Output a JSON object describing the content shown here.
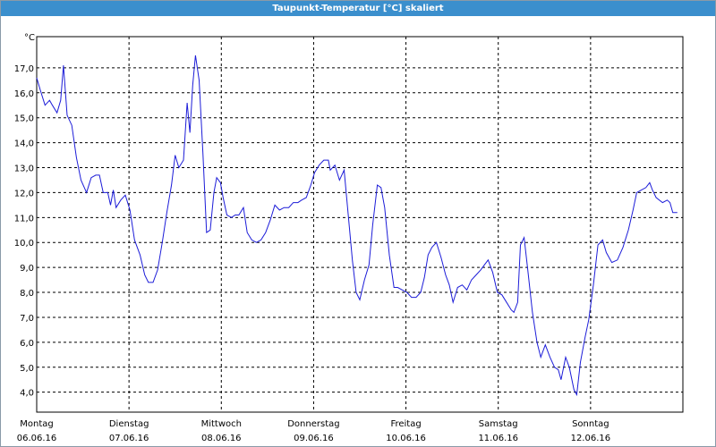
{
  "chart_data": {
    "type": "line",
    "title": "Taupunkt-Temperatur [°C] skaliert",
    "y_unit": "°C",
    "xlim": [
      0,
      7
    ],
    "ylim": [
      3.2,
      18.25
    ],
    "xticks": [
      {
        "value": 0,
        "label": "Montag",
        "date": "06.06.16"
      },
      {
        "value": 1,
        "label": "Dienstag",
        "date": "07.06.16"
      },
      {
        "value": 2,
        "label": "Mittwoch",
        "date": "08.06.16"
      },
      {
        "value": 3,
        "label": "Donnerstag",
        "date": "09.06.16"
      },
      {
        "value": 4,
        "label": "Freitag",
        "date": "10.06.16"
      },
      {
        "value": 5,
        "label": "Samstag",
        "date": "11.06.16"
      },
      {
        "value": 6,
        "label": "Sonntag",
        "date": "12.06.16"
      }
    ],
    "yticks": [
      {
        "value": 4,
        "label": "4,0"
      },
      {
        "value": 5,
        "label": "5,0"
      },
      {
        "value": 6,
        "label": "6,0"
      },
      {
        "value": 7,
        "label": "7,0"
      },
      {
        "value": 8,
        "label": "8,0"
      },
      {
        "value": 9,
        "label": "9,0"
      },
      {
        "value": 10,
        "label": "10,0"
      },
      {
        "value": 11,
        "label": "11,0"
      },
      {
        "value": 12,
        "label": "12,0"
      },
      {
        "value": 13,
        "label": "13,0"
      },
      {
        "value": 14,
        "label": "14,0"
      },
      {
        "value": 15,
        "label": "15,0"
      },
      {
        "value": 16,
        "label": "16,0"
      },
      {
        "value": 17,
        "label": "17,0"
      }
    ],
    "grid": true,
    "series": [
      {
        "color": "#1c1cd8",
        "x": [
          0,
          0.04,
          0.09,
          0.14,
          0.17,
          0.22,
          0.26,
          0.29,
          0.33,
          0.38,
          0.43,
          0.48,
          0.54,
          0.59,
          0.64,
          0.68,
          0.72,
          0.77,
          0.8,
          0.83,
          0.86,
          0.91,
          0.96,
          1.01,
          1.06,
          1.12,
          1.17,
          1.21,
          1.26,
          1.31,
          1.36,
          1.41,
          1.46,
          1.5,
          1.54,
          1.59,
          1.63,
          1.66,
          1.69,
          1.72,
          1.76,
          1.8,
          1.84,
          1.88,
          1.92,
          1.95,
          1.99,
          2.02,
          2.06,
          2.11,
          2.15,
          2.19,
          2.24,
          2.28,
          2.33,
          2.38,
          2.43,
          2.48,
          2.53,
          2.58,
          2.63,
          2.68,
          2.73,
          2.78,
          2.83,
          2.87,
          2.92,
          2.97,
          3.01,
          3.06,
          3.11,
          3.16,
          3.18,
          3.23,
          3.28,
          3.33,
          3.37,
          3.42,
          3.46,
          3.5,
          3.55,
          3.6,
          3.64,
          3.69,
          3.73,
          3.77,
          3.82,
          3.87,
          3.91,
          3.96,
          4.01,
          4.06,
          4.11,
          4.16,
          4.2,
          4.24,
          4.28,
          4.33,
          4.38,
          4.43,
          4.47,
          4.51,
          4.56,
          4.61,
          4.66,
          4.71,
          4.76,
          4.81,
          4.85,
          4.89,
          4.94,
          4.99,
          5.04,
          5.09,
          5.14,
          5.17,
          5.21,
          5.24,
          5.28,
          5.32,
          5.37,
          5.42,
          5.46,
          5.51,
          5.56,
          5.61,
          5.65,
          5.68,
          5.73,
          5.77,
          5.82,
          5.85,
          5.89,
          5.94,
          5.98,
          6.03,
          6.08,
          6.13,
          6.17,
          6.23,
          6.29,
          6.35,
          6.41,
          6.46,
          6.5,
          6.55,
          6.6,
          6.64,
          6.67,
          6.71,
          6.78,
          6.83,
          6.86,
          6.89,
          6.94
        ],
        "values": [
          16.6,
          16.1,
          15.5,
          15.7,
          15.5,
          15.2,
          15.7,
          17.1,
          15.1,
          14.7,
          13.4,
          12.5,
          12.0,
          12.6,
          12.7,
          12.7,
          12.0,
          12.0,
          11.5,
          12.1,
          11.4,
          11.7,
          11.9,
          11.3,
          10.1,
          9.5,
          8.7,
          8.4,
          8.4,
          8.9,
          10.0,
          11.2,
          12.3,
          13.5,
          13.0,
          13.3,
          15.6,
          14.4,
          16.3,
          17.5,
          16.5,
          13.6,
          10.4,
          10.5,
          12.0,
          12.6,
          12.4,
          11.8,
          11.1,
          11.0,
          11.1,
          11.1,
          11.4,
          10.4,
          10.1,
          10.0,
          10.1,
          10.4,
          10.9,
          11.5,
          11.3,
          11.4,
          11.4,
          11.6,
          11.6,
          11.7,
          11.8,
          12.3,
          12.8,
          13.1,
          13.3,
          13.3,
          12.9,
          13.1,
          12.5,
          12.9,
          11.3,
          9.3,
          8.0,
          7.7,
          8.5,
          9.1,
          10.7,
          12.3,
          12.2,
          11.4,
          9.5,
          8.2,
          8.2,
          8.1,
          8.0,
          7.8,
          7.8,
          8.0,
          8.6,
          9.5,
          9.8,
          10.0,
          9.4,
          8.7,
          8.3,
          7.6,
          8.2,
          8.3,
          8.1,
          8.5,
          8.7,
          8.9,
          9.1,
          9.3,
          8.8,
          8.0,
          7.9,
          7.6,
          7.3,
          7.2,
          7.6,
          9.9,
          10.2,
          8.9,
          7.2,
          6.0,
          5.4,
          5.9,
          5.4,
          5.0,
          4.9,
          4.5,
          5.4,
          5.0,
          4.1,
          3.9,
          5.2,
          6.2,
          6.9,
          8.3,
          9.9,
          10.1,
          9.6,
          9.2,
          9.3,
          9.8,
          10.5,
          11.3,
          12.0,
          12.1,
          12.2,
          12.4,
          12.1,
          11.8,
          11.6,
          11.7,
          11.6,
          11.2,
          11.2
        ]
      }
    ]
  }
}
